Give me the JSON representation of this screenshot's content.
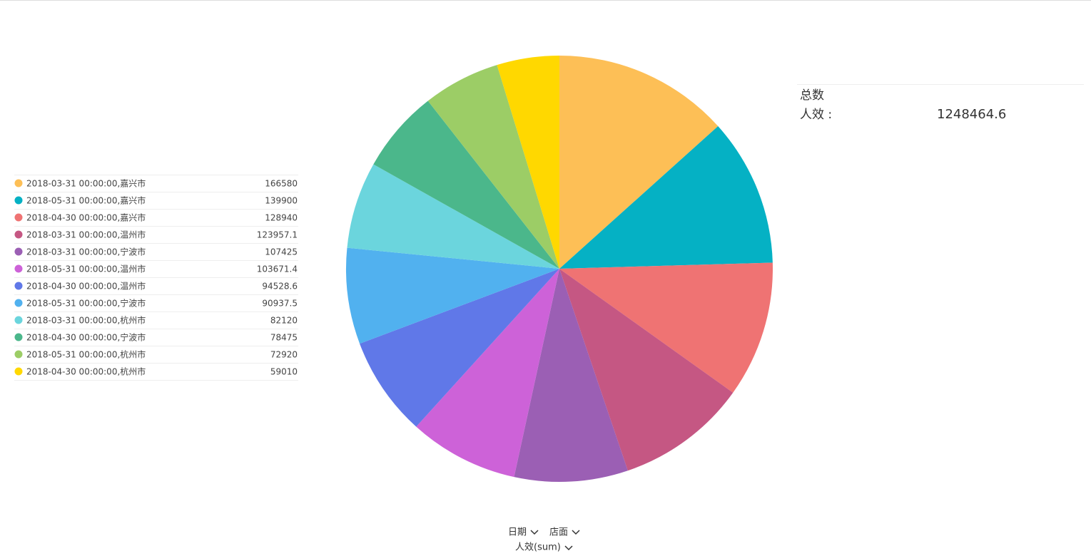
{
  "chart_data": {
    "type": "pie",
    "categories": [
      "2018-03-31 00:00:00,嘉兴市",
      "2018-05-31 00:00:00,嘉兴市",
      "2018-04-30 00:00:00,嘉兴市",
      "2018-03-31 00:00:00,温州市",
      "2018-03-31 00:00:00,宁波市",
      "2018-05-31 00:00:00,温州市",
      "2018-04-30 00:00:00,温州市",
      "2018-05-31 00:00:00,宁波市",
      "2018-03-31 00:00:00,杭州市",
      "2018-04-30 00:00:00,宁波市",
      "2018-05-31 00:00:00,杭州市",
      "2018-04-30 00:00:00,杭州市"
    ],
    "values": [
      166580,
      139900,
      128940,
      123957.1,
      107425,
      103671.4,
      94528.6,
      90937.5,
      82120,
      78475,
      72920,
      59010
    ],
    "colors": [
      "#fdbf56",
      "#05b1c4",
      "#ef7373",
      "#c55783",
      "#9b5fb4",
      "#cd62d8",
      "#6078e8",
      "#51b1ef",
      "#6bd5dd",
      "#4bb78b",
      "#9ccd66",
      "#ffd800"
    ]
  },
  "summary": {
    "title": "总数",
    "label": "人效 :",
    "value": 1248464.6
  },
  "controls": [
    "日期",
    "店面",
    "人效(sum)"
  ]
}
